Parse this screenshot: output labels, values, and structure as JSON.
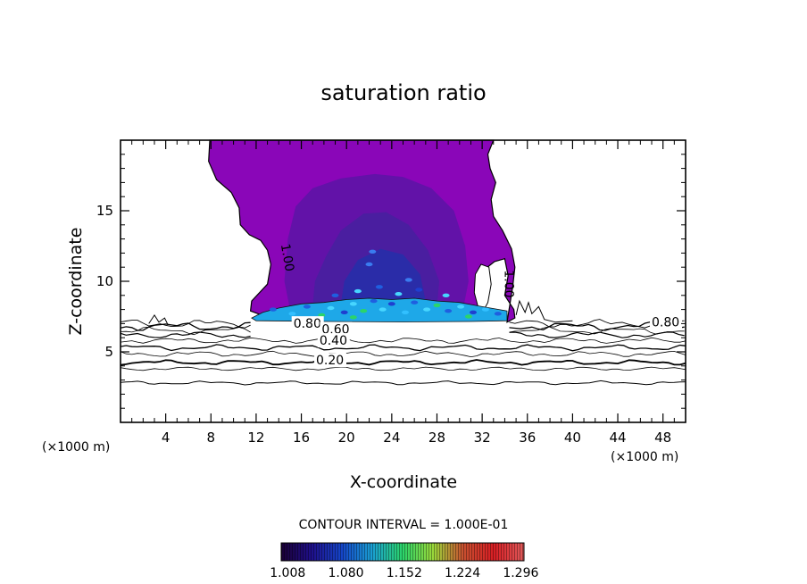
{
  "chart_data": {
    "type": "contour",
    "title": "saturation ratio",
    "xlabel": "X-coordinate",
    "ylabel": "Z-coordinate",
    "x_unit_left": "(×1000 m)",
    "x_unit_right": "(×1000 m)",
    "xlim": [
      0,
      50
    ],
    "ylim": [
      0,
      20
    ],
    "x_ticks": [
      4,
      8,
      12,
      16,
      20,
      24,
      28,
      32,
      36,
      40,
      44,
      48
    ],
    "y_ticks": [
      5,
      10,
      15
    ],
    "contour_interval_text": "CONTOUR INTERVAL = 1.000E-01",
    "contour_labels": [
      {
        "text": "1.00",
        "x": 14.2,
        "z": 12.6
      },
      {
        "text": "1.00",
        "x": 34.0,
        "z": 10.8
      },
      {
        "text": "0.80",
        "x": 47.0,
        "z": 6.8
      },
      {
        "text": "0.80",
        "x": 15.3,
        "z": 6.7
      },
      {
        "text": "0.60",
        "x": 17.8,
        "z": 6.3
      },
      {
        "text": "0.40",
        "x": 17.6,
        "z": 5.5
      },
      {
        "text": "0.20",
        "x": 17.3,
        "z": 4.1
      }
    ],
    "colorbar": {
      "ticks": [
        "1.008",
        "1.080",
        "1.152",
        "1.224",
        "1.296"
      ],
      "range": [
        1.0,
        1.3
      ],
      "colors": [
        "#1a0033",
        "#1f0f8a",
        "#1545c8",
        "#1a9fd2",
        "#2bd46a",
        "#9ad83a",
        "#c85030",
        "#d81e24",
        "#e05a5a"
      ]
    },
    "fill_colors": {
      "cloud_outer": "#8a06b8",
      "cloud_mid": "#6212a8",
      "cloud_inner": "#4a1ea0",
      "cloud_core": "#2a2ca8",
      "base_band": "#1ea8e8"
    }
  }
}
